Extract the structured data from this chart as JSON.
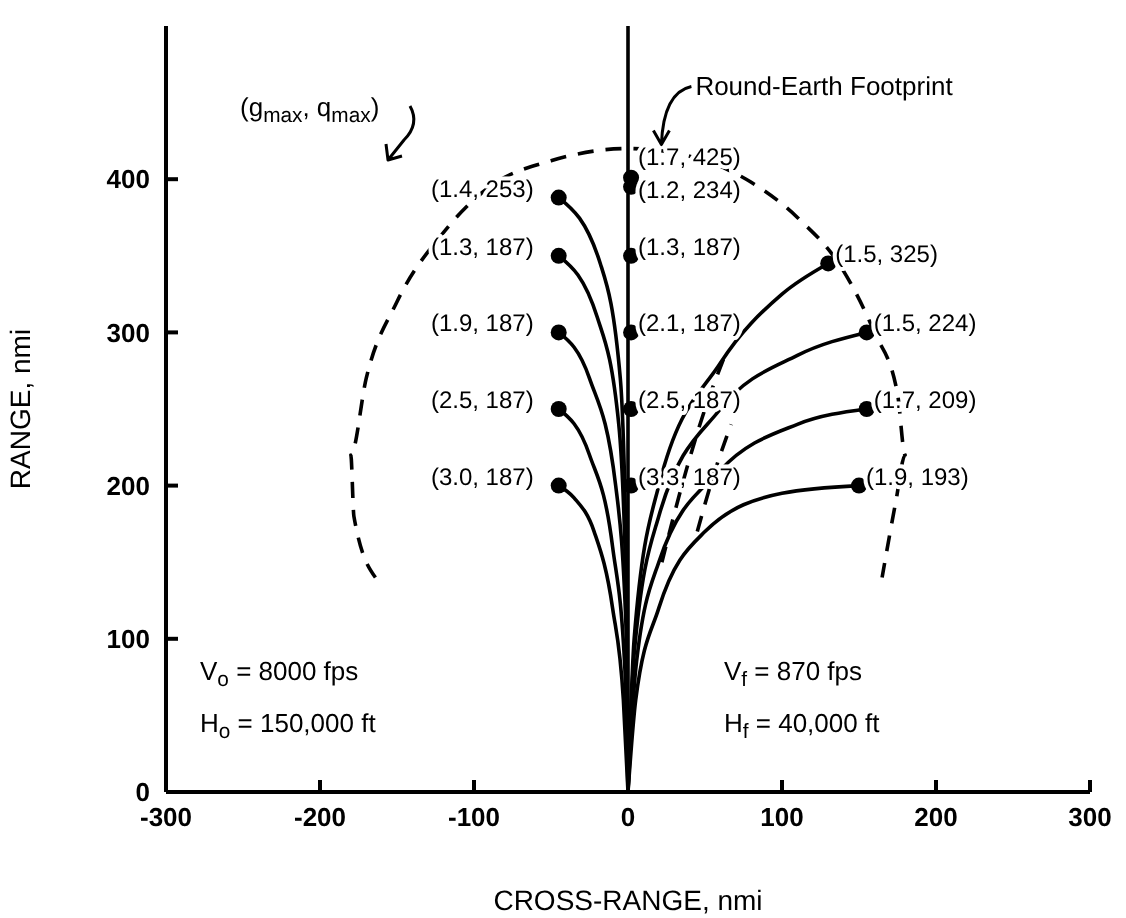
{
  "chart_data": {
    "type": "line",
    "xlabel": "CROSS-RANGE, nmi",
    "ylabel": "RANGE, nmi",
    "xlim": [
      -300,
      300
    ],
    "xticks": [
      -300,
      -200,
      -100,
      0,
      100,
      200,
      300
    ],
    "ylim": [
      0,
      500
    ],
    "yticks": [
      0,
      100,
      200,
      300,
      400
    ],
    "grid": false,
    "legend": false,
    "marker": "none",
    "line_style": "solid",
    "ref_lines": [
      {
        "axis": "x",
        "value": 0,
        "color": "#000000"
      }
    ],
    "series": [
      {
        "color": "#000000",
        "x": [
          0,
          -3,
          -10,
          -22,
          -35,
          -45
        ],
        "values": [
          0,
          60,
          120,
          170,
          192,
          200
        ]
      },
      {
        "color": "#000000",
        "x": [
          0,
          -2,
          -10,
          -25,
          -45
        ],
        "values": [
          0,
          80,
          160,
          220,
          250
        ]
      },
      {
        "color": "#000000",
        "x": [
          0,
          -1,
          -8,
          -25,
          -45
        ],
        "values": [
          0,
          100,
          200,
          270,
          300
        ]
      },
      {
        "color": "#000000",
        "x": [
          0,
          -1,
          -6,
          -20,
          -45
        ],
        "values": [
          0,
          120,
          240,
          310,
          350
        ]
      },
      {
        "color": "#000000",
        "x": [
          0,
          -1,
          -5,
          -18,
          -45
        ],
        "values": [
          0,
          140,
          270,
          345,
          388
        ]
      },
      {
        "color": "#000000",
        "x": [
          0,
          5,
          20,
          50,
          100,
          150
        ],
        "values": [
          0,
          60,
          120,
          170,
          195,
          200
        ]
      },
      {
        "color": "#000000",
        "x": [
          0,
          5,
          20,
          60,
          110,
          155
        ],
        "values": [
          0,
          80,
          150,
          210,
          240,
          250
        ]
      },
      {
        "color": "#000000",
        "x": [
          0,
          4,
          20,
          60,
          110,
          155
        ],
        "values": [
          0,
          90,
          180,
          250,
          285,
          300
        ]
      },
      {
        "color": "#000000",
        "x": [
          0,
          4,
          20,
          60,
          100,
          130
        ],
        "values": [
          0,
          100,
          200,
          280,
          325,
          345
        ]
      },
      {
        "color": "#000000",
        "line_style": "dashed",
        "x": [
          -164,
          -178,
          -180,
          -170,
          -150,
          -120,
          -90,
          -50,
          0,
          40,
          80,
          110,
          140,
          160,
          175,
          180,
          174,
          165
        ],
        "values": [
          140,
          180,
          220,
          270,
          320,
          365,
          395,
          412,
          420,
          415,
          398,
          375,
          340,
          300,
          260,
          220,
          190,
          140
        ]
      },
      {
        "color": "#000000",
        "line_style": "dashed",
        "x": [
          22,
          35,
          50,
          63
        ],
        "values": [
          150,
          200,
          250,
          285
        ]
      },
      {
        "color": "#000000",
        "line_style": "dashed",
        "x": [
          45,
          55,
          67
        ],
        "values": [
          170,
          205,
          240
        ]
      },
      {
        "type": "scatter",
        "marker": "circle",
        "color": "#000000",
        "x": [
          -45,
          -45,
          -45,
          -45,
          -45,
          2,
          2,
          2,
          2,
          2,
          2,
          130,
          155,
          155,
          150
        ],
        "values": [
          388,
          350,
          300,
          250,
          200,
          401,
          395,
          350,
          300,
          250,
          200,
          345,
          300,
          250,
          200
        ],
        "value_labels": [
          "(1.4, 253)",
          "(1.3, 187)",
          "(1.9, 187)",
          "(2.5, 187)",
          "(3.0, 187)",
          "(1.7, 425)",
          "(1.2, 234)",
          "(1.3, 187)",
          "(2.1, 187)",
          "(2.5, 187)",
          "(3.3, 187)",
          "(1.5, 325)",
          "(1.5, 224)",
          "(1.7, 209)",
          "(1.9, 193)"
        ]
      }
    ],
    "annotations": [
      {
        "text": "Round-Earth Footprint",
        "x": 10,
        "y": 420
      },
      "(g$_{max}$, q$_{max}$)",
      "V$_{o}$ = 8000 fps",
      "H$_{o}$ = 150,000 ft",
      "V$_{f}$ = 870 fps",
      "H$_{f}$ = 40,000 ft"
    ]
  }
}
